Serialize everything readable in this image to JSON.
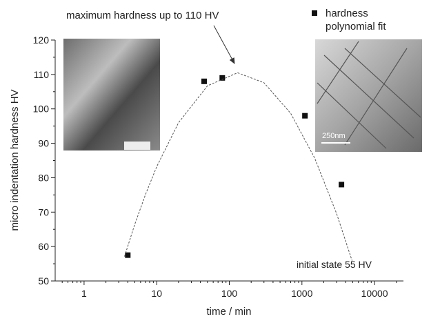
{
  "chart_data": {
    "type": "scatter",
    "xlabel": "time / min",
    "ylabel": "micro indentation hardness  HV",
    "xscale": "log",
    "xlim": [
      0.4,
      25000
    ],
    "xticks": [
      1,
      10,
      100,
      1000,
      10000
    ],
    "ylim": [
      50,
      120
    ],
    "yticks": [
      50,
      60,
      70,
      80,
      90,
      100,
      110,
      120
    ],
    "legend": "upper right",
    "series": [
      {
        "name": "hardness",
        "color": "#111111",
        "marker": "square",
        "x": [
          4,
          45,
          80,
          1100,
          3500
        ],
        "values": [
          57.5,
          108,
          109,
          98,
          78
        ]
      },
      {
        "name": "polynomial fit",
        "color": "#555555",
        "line": "dashed",
        "x": [
          3.6,
          5,
          7,
          10,
          20,
          50,
          130,
          300,
          700,
          1500,
          3000,
          4900
        ],
        "values": [
          57.1,
          66.5,
          75.1,
          83.2,
          96.0,
          106.7,
          110.5,
          107.6,
          98.7,
          85.7,
          69.6,
          55.9
        ]
      }
    ],
    "annotations": [
      "maximum hardness up to 110 HV",
      "initial state 55 HV",
      "250nm"
    ]
  }
}
